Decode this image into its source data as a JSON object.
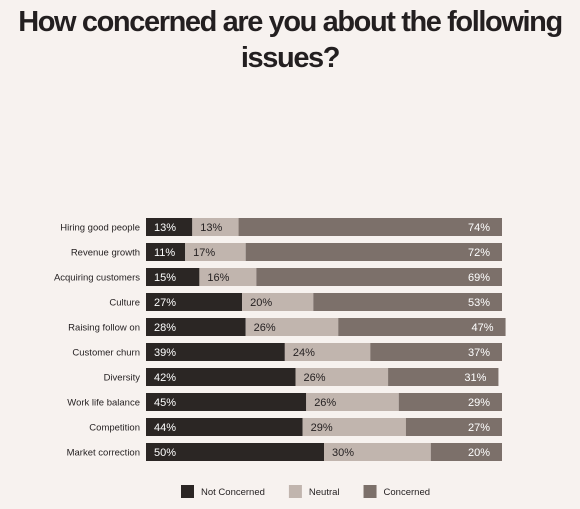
{
  "chart_data": {
    "type": "bar",
    "orientation": "horizontal",
    "stacked": true,
    "title": "How concerned are you about the following issues?",
    "xlabel": "",
    "ylabel": "",
    "xlim": [
      0,
      100
    ],
    "value_suffix": "%",
    "grid": false,
    "legend": "bottom",
    "categories": [
      "Hiring good people",
      "Revenue growth",
      "Acquiring customers",
      "Culture",
      "Raising follow on",
      "Customer churn",
      "Diversity",
      "Work life balance",
      "Competition",
      "Market correction"
    ],
    "series": [
      {
        "name": "Not Concerned",
        "color": "#2b2624",
        "label_color": "#ffffff",
        "values": [
          13,
          11,
          15,
          27,
          28,
          39,
          42,
          45,
          44,
          50
        ]
      },
      {
        "name": "Neutral",
        "color": "#c1b5ae",
        "label_color": "#231f20",
        "values": [
          13,
          17,
          16,
          20,
          26,
          24,
          26,
          26,
          29,
          30
        ]
      },
      {
        "name": "Concerned",
        "color": "#7c706a",
        "label_color": "#ffffff",
        "values": [
          74,
          72,
          69,
          53,
          47,
          37,
          31,
          29,
          27,
          20
        ]
      }
    ]
  }
}
